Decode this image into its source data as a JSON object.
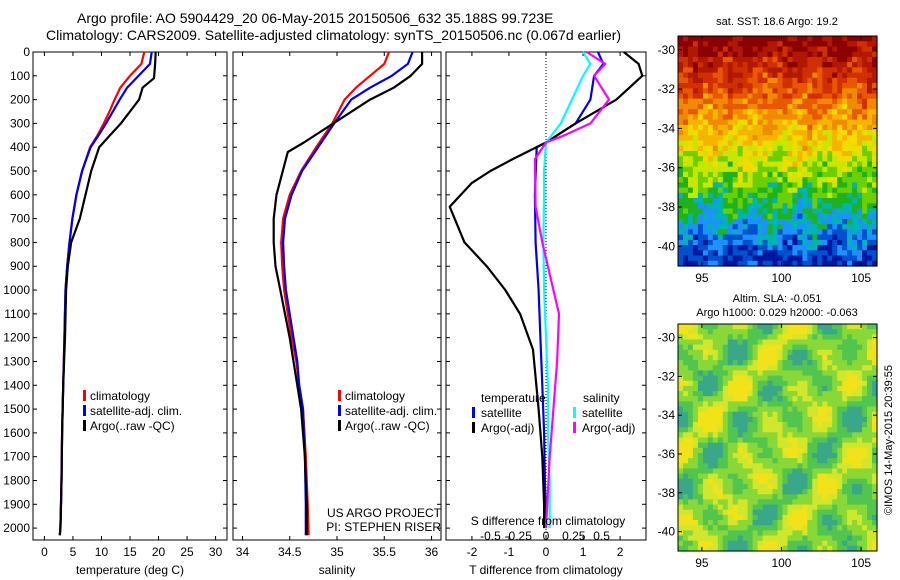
{
  "header": {
    "title_line1": "Argo profile: AO 5904429_20 06-May-2015 20150506_632 35.188S 99.723E",
    "title_line2": "Climatology: CARS2009. Satellite-adjusted climatology: synTS_20150506.nc (0.067d earlier)"
  },
  "colors": {
    "climatology": "#ff0000",
    "satellite": "#0000ee",
    "argo": "#000000",
    "sat_salinity": "#00ffff",
    "argo_salinity": "#ff00ff"
  },
  "depth_axis": {
    "ticks": [
      0,
      100,
      200,
      300,
      400,
      500,
      600,
      700,
      800,
      900,
      1000,
      1100,
      1200,
      1300,
      1400,
      1500,
      1600,
      1700,
      1800,
      1900,
      2000
    ],
    "max": 2050
  },
  "panels": {
    "temperature": {
      "xlabel": "temperature (deg C)",
      "xlim": [
        -2,
        32
      ],
      "xticks": [
        0,
        5,
        10,
        15,
        20,
        25,
        30
      ],
      "legend": [
        "climatology",
        "satellite-adj. clim.",
        "Argo(..raw -QC)"
      ]
    },
    "salinity": {
      "xlabel": "salinity",
      "xlim": [
        33.9,
        36.1
      ],
      "xticks": [
        "34",
        "34.5",
        "35",
        "35.5",
        "36"
      ],
      "legend": [
        "climatology",
        "satellite-adj. clim.",
        "Argo(..raw -QC)"
      ],
      "note_line1": "US ARGO PROJECT",
      "note_line2": "PI: STEPHEN RISER"
    },
    "difference": {
      "xlabel": "T difference from climatology",
      "xlim": [
        -2.7,
        2.7
      ],
      "xticks": [
        "-2",
        "-1",
        "0",
        "1",
        "2"
      ],
      "top_label": "S difference from climatology",
      "top_ticks": [
        "-0.5",
        "-0.25",
        "0",
        "0.25",
        "0.5"
      ],
      "legend_temperature_title": "temperature",
      "legend_salinity_title": "salinity",
      "legend_temperature": [
        "satellite",
        "Argo(-adj)"
      ],
      "legend_salinity": [
        "satellite",
        "Argo(-adj)"
      ]
    }
  },
  "maps": {
    "sst_title": "sat. SST: 18.6  Argo: 19.2",
    "sla_title_line1": "Altim. SLA: -0.051",
    "sla_title_line2": "Argo h1000: 0.029 h2000: -0.063",
    "lat_ticks": [
      "-30",
      "-32",
      "-34",
      "-36",
      "-38",
      "-40"
    ],
    "lon_ticks": [
      "95",
      "100",
      "105"
    ]
  },
  "stamp": "©IMOS 14-May-2015 20:39:55",
  "chart_data": [
    {
      "type": "line",
      "xlabel": "temperature (deg C)",
      "ylabel": "",
      "xlim": [
        -2,
        32
      ],
      "ylim": [
        2050,
        0
      ],
      "series": [
        {
          "name": "climatology",
          "color": "#ff0000",
          "x": [
            17.5,
            17.0,
            15.0,
            13.3,
            12.3,
            11.4,
            10.4,
            9.3,
            8.0,
            6.6,
            5.6,
            4.9,
            4.4,
            4.0,
            3.7,
            3.5,
            3.3,
            3.1,
            3.0,
            2.9,
            2.8,
            2.7
          ],
          "y": [
            0,
            50,
            100,
            150,
            200,
            250,
            300,
            350,
            400,
            500,
            600,
            700,
            800,
            900,
            1000,
            1200,
            1400,
            1600,
            1800,
            1900,
            2000,
            2030
          ]
        },
        {
          "name": "satellite-adj. clim.",
          "color": "#0000ee",
          "x": [
            18.8,
            18.5,
            16.5,
            14.5,
            13.2,
            12.0,
            10.8,
            9.5,
            8.1,
            6.6,
            5.6,
            4.9,
            4.4,
            4.0,
            3.7,
            3.5,
            3.3,
            3.1,
            3.0,
            2.9,
            2.8,
            2.7
          ],
          "y": [
            0,
            50,
            100,
            150,
            200,
            250,
            300,
            350,
            400,
            500,
            600,
            700,
            800,
            900,
            1000,
            1200,
            1400,
            1600,
            1800,
            1900,
            2000,
            2030
          ]
        },
        {
          "name": "Argo(..raw -QC)",
          "color": "#000000",
          "x": [
            19.5,
            19.4,
            19.2,
            17.2,
            16.6,
            15.0,
            13.4,
            11.5,
            9.6,
            8.2,
            7.2,
            6.2,
            4.7,
            4.1,
            3.8,
            3.6,
            3.3,
            3.1,
            3.0,
            2.9,
            2.8,
            2.7
          ],
          "y": [
            0,
            50,
            110,
            150,
            200,
            250,
            300,
            350,
            400,
            500,
            600,
            700,
            800,
            900,
            1000,
            1200,
            1400,
            1600,
            1800,
            1900,
            2000,
            2030
          ]
        }
      ]
    },
    {
      "type": "line",
      "xlabel": "salinity",
      "ylabel": "",
      "xlim": [
        33.9,
        36.1
      ],
      "ylim": [
        2050,
        0
      ],
      "series": [
        {
          "name": "climatology",
          "color": "#ff0000",
          "x": [
            35.55,
            35.5,
            35.35,
            35.2,
            35.08,
            34.95,
            34.78,
            34.62,
            34.5,
            34.43,
            34.41,
            34.42,
            34.44,
            34.48,
            34.52,
            34.57,
            34.6,
            34.64,
            34.67,
            34.69,
            34.7
          ],
          "y": [
            0,
            50,
            100,
            150,
            200,
            300,
            400,
            500,
            600,
            700,
            800,
            900,
            1000,
            1100,
            1200,
            1300,
            1400,
            1500,
            1700,
            1900,
            2030
          ]
        },
        {
          "name": "satellite-adj. clim.",
          "color": "#0000ee",
          "x": [
            35.8,
            35.75,
            35.58,
            35.35,
            35.15,
            34.97,
            34.8,
            34.63,
            34.52,
            34.45,
            34.43,
            34.44,
            34.46,
            34.5,
            34.54,
            34.58,
            34.6,
            34.64,
            34.66,
            34.67,
            34.67
          ],
          "y": [
            0,
            50,
            100,
            150,
            200,
            300,
            400,
            500,
            600,
            700,
            800,
            900,
            1000,
            1100,
            1200,
            1300,
            1400,
            1500,
            1700,
            1900,
            2030
          ]
        },
        {
          "name": "Argo(..raw -QC)",
          "color": "#000000",
          "x": [
            35.9,
            35.9,
            35.78,
            35.6,
            35.35,
            34.65,
            34.48,
            34.36,
            34.33,
            34.33,
            34.35,
            34.4,
            34.45,
            34.5,
            34.54,
            34.58,
            34.62,
            34.66,
            34.68,
            34.68
          ],
          "y": [
            0,
            50,
            100,
            150,
            200,
            380,
            420,
            600,
            700,
            800,
            900,
            1000,
            1100,
            1200,
            1300,
            1400,
            1500,
            1700,
            1900,
            2030
          ]
        }
      ]
    },
    {
      "type": "line",
      "xlabel": "T difference from climatology",
      "ylabel": "",
      "xlim": [
        -2.7,
        2.7
      ],
      "ylim": [
        2050,
        0
      ],
      "series": [
        {
          "name": "satellite (temperature)",
          "color": "#0000ee",
          "x": [
            1.4,
            1.55,
            1.3,
            1.2,
            0.8,
            0.3,
            0.0,
            -0.25,
            -0.3,
            -0.28,
            -0.2,
            -0.15,
            -0.1,
            -0.05,
            -0.03,
            0.0
          ],
          "y": [
            0,
            50,
            100,
            200,
            300,
            350,
            380,
            400,
            600,
            800,
            1000,
            1200,
            1400,
            1600,
            1800,
            2000
          ]
        },
        {
          "name": "Argo(-adj) (temperature)",
          "color": "#000000",
          "x": [
            2.1,
            2.5,
            2.6,
            1.9,
            0.8,
            0.0,
            -0.9,
            -1.5,
            -2.0,
            -2.6,
            -2.2,
            -1.6,
            -1.1,
            -0.7,
            -0.35,
            -0.2,
            -0.1,
            -0.05,
            -0.05
          ],
          "y": [
            0,
            50,
            100,
            200,
            300,
            380,
            450,
            500,
            550,
            650,
            800,
            900,
            1000,
            1100,
            1250,
            1500,
            1700,
            1900,
            2000
          ]
        },
        {
          "name": "satellite (salinity)",
          "color": "#00ffff",
          "x": [
            1.0,
            1.2,
            1.0,
            0.7,
            0.4,
            0.0,
            -0.05,
            -0.05,
            -0.07,
            -0.05,
            0.0,
            0.05,
            0.05,
            0.1,
            0.1
          ],
          "y": [
            0,
            50,
            100,
            200,
            300,
            380,
            500,
            600,
            800,
            1000,
            1200,
            1400,
            1600,
            1800,
            2000
          ]
        },
        {
          "name": "Argo(-adj) (salinity)",
          "color": "#ff00ff",
          "x": [
            1.1,
            1.6,
            1.3,
            1.7,
            1.2,
            0.5,
            0.0,
            -0.3,
            -0.28,
            -0.1,
            0.2,
            0.35,
            0.3,
            0.2,
            0.1,
            0.0
          ],
          "y": [
            0,
            50,
            100,
            200,
            300,
            350,
            380,
            450,
            650,
            800,
            1000,
            1100,
            1300,
            1500,
            1700,
            2000
          ]
        }
      ]
    },
    {
      "type": "heatmap",
      "title": "sat. SST: 18.6  Argo: 19.2",
      "xlim": [
        93.5,
        106
      ],
      "ylim": [
        -41,
        -29.3
      ],
      "lat_rows": [
        -30,
        -31,
        -32,
        -33,
        -34,
        -35,
        -36,
        -37,
        -38,
        -39,
        -40,
        -41
      ],
      "values": [
        22.0,
        21.5,
        21.0,
        20.3,
        19.3,
        18.6,
        17.9,
        17.2,
        16.5,
        15.9,
        15.3,
        14.9
      ]
    },
    {
      "type": "heatmap",
      "title": "Altim. SLA: -0.051",
      "subtitle": "Argo h1000: 0.029 h2000: -0.063",
      "xlim": [
        93.5,
        106
      ],
      "ylim": [
        -41,
        -29.3
      ],
      "values": [
        -0.05,
        0.0,
        0.05
      ]
    }
  ]
}
